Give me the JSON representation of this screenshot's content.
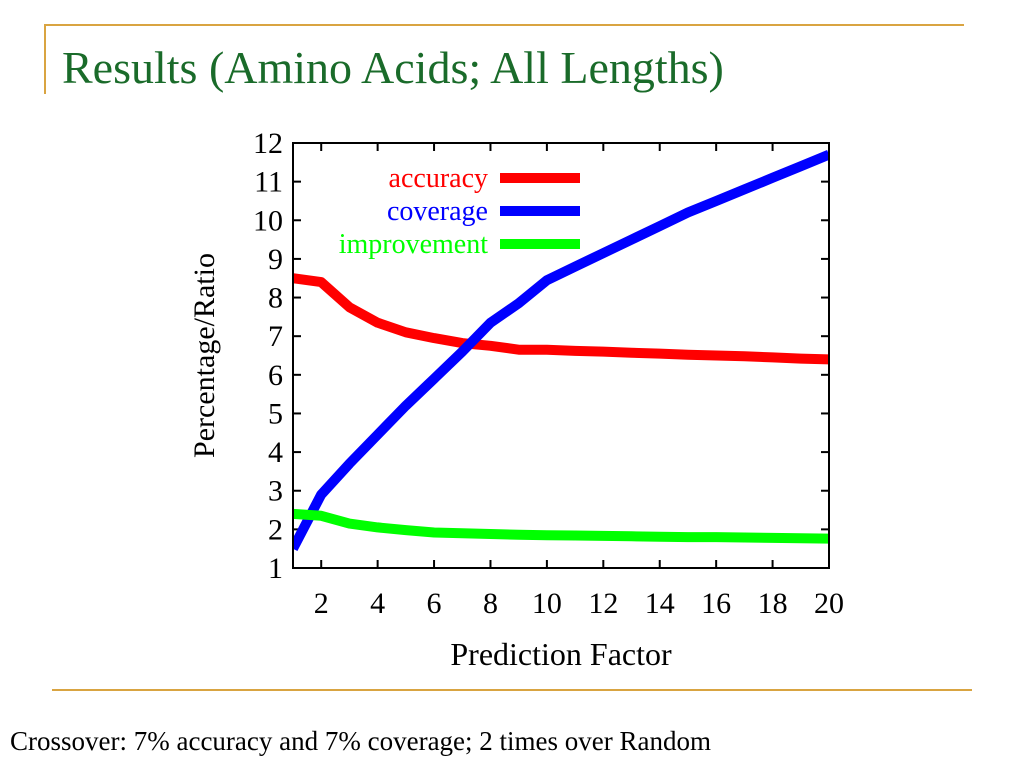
{
  "slide": {
    "title": "Results (Amino Acids; All Lengths)",
    "footer": "Crossover: 7% accuracy and 7% coverage; 2 times over Random"
  },
  "colors": {
    "title": "#1a6b2a",
    "accent_line": "#d9a441"
  },
  "chart_data": {
    "type": "line",
    "title": "",
    "xlabel": "Prediction Factor",
    "ylabel": "Percentage/Ratio",
    "xlim": [
      1,
      20
    ],
    "ylim": [
      1,
      12
    ],
    "xticks": [
      2,
      4,
      6,
      8,
      10,
      12,
      14,
      16,
      18,
      20
    ],
    "xtick_labels": [
      "2",
      "4",
      "6",
      "8",
      "10",
      "12",
      "14",
      "16",
      "18",
      "20"
    ],
    "yticks": [
      1,
      2,
      3,
      4,
      5,
      6,
      7,
      8,
      9,
      10,
      11,
      12
    ],
    "ytick_labels": [
      "1",
      "2",
      "3",
      "4",
      "5",
      "6",
      "7",
      "8",
      "9",
      "10",
      "11",
      "12"
    ],
    "legend_position": "top-left",
    "grid": false,
    "series": [
      {
        "name": "accuracy",
        "color": "#ff0000",
        "x": [
          1,
          2,
          3,
          4,
          5,
          6,
          7,
          8,
          9,
          10,
          11,
          12,
          13,
          14,
          15,
          16,
          17,
          18,
          19,
          20
        ],
        "y": [
          8.5,
          8.4,
          7.75,
          7.35,
          7.1,
          6.95,
          6.82,
          6.75,
          6.65,
          6.65,
          6.62,
          6.6,
          6.57,
          6.55,
          6.52,
          6.5,
          6.48,
          6.45,
          6.42,
          6.4
        ]
      },
      {
        "name": "coverage",
        "color": "#0000ff",
        "x": [
          1,
          2,
          3,
          4,
          5,
          6,
          7,
          8,
          9,
          10,
          11,
          12,
          13,
          14,
          15,
          16,
          17,
          18,
          19,
          20
        ],
        "y": [
          1.5,
          2.9,
          3.7,
          4.45,
          5.2,
          5.9,
          6.6,
          7.35,
          7.85,
          8.45,
          8.8,
          9.15,
          9.5,
          9.85,
          10.2,
          10.5,
          10.8,
          11.1,
          11.4,
          11.7
        ]
      },
      {
        "name": "improvement",
        "color": "#00ff00",
        "x": [
          1,
          2,
          3,
          4,
          5,
          6,
          7,
          8,
          9,
          10,
          11,
          12,
          13,
          14,
          15,
          16,
          17,
          18,
          19,
          20
        ],
        "y": [
          2.4,
          2.35,
          2.15,
          2.05,
          1.98,
          1.92,
          1.9,
          1.88,
          1.86,
          1.85,
          1.84,
          1.83,
          1.82,
          1.81,
          1.8,
          1.8,
          1.79,
          1.78,
          1.77,
          1.76
        ]
      }
    ]
  }
}
